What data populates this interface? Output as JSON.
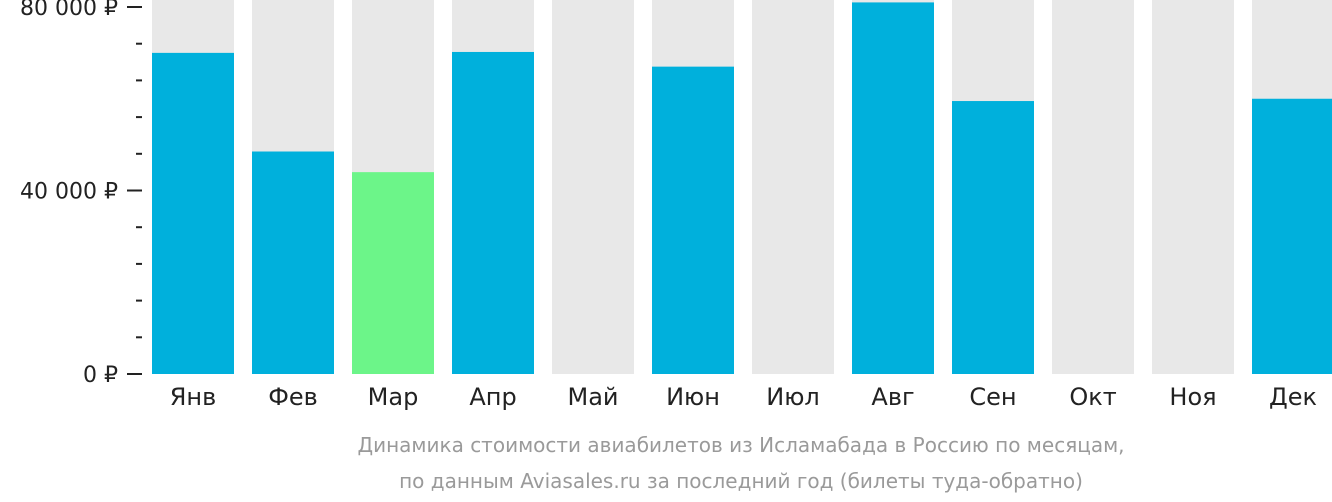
{
  "chart_data": {
    "type": "bar",
    "categories": [
      "Янв",
      "Фев",
      "Мар",
      "Апр",
      "Май",
      "Июн",
      "Июл",
      "Авг",
      "Сен",
      "Окт",
      "Ноя",
      "Дек"
    ],
    "values": [
      70000,
      48500,
      44000,
      70200,
      null,
      67000,
      null,
      81000,
      59500,
      null,
      null,
      60000
    ],
    "highlight_index": 2,
    "ylim": [
      0,
      80000
    ],
    "y_ticks": [
      {
        "value": 0,
        "label": "0 ₽"
      },
      {
        "value": 40000,
        "label": "40 000 ₽"
      },
      {
        "value": 80000,
        "label": "80 000 ₽"
      }
    ],
    "y_minor_step": 8000,
    "title": "Динамика стоимости авиабилетов из Исламабада в Россию по месяцам,",
    "subtitle": "по данным Aviasales.ru за последний год (билеты туда-обратно)",
    "colors": {
      "bar": "#00b0dc",
      "highlight": "#6cf589",
      "background_bar": "#e8e8e8",
      "text": "#222222",
      "caption": "#9a9a9a"
    }
  }
}
